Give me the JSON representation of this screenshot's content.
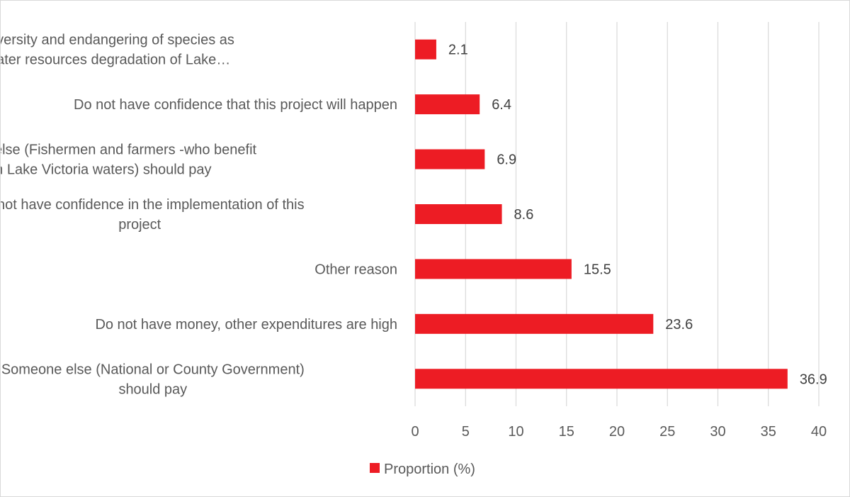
{
  "chart_data": {
    "type": "bar",
    "orientation": "horizontal",
    "title": "",
    "xlabel": "",
    "ylabel": "",
    "xlim": [
      0,
      40
    ],
    "x_ticks": [
      0,
      5,
      10,
      15,
      20,
      25,
      30,
      35,
      40
    ],
    "grid": true,
    "legend_position": "bottom",
    "bar_color": "#ed1c24",
    "categories": [
      [
        "Declining biodiversity and endangering of species as",
        "the result of water resources degradation of Lake…"
      ],
      [
        "Do not have confidence that this project will happen"
      ],
      [
        "Someone else (Fishermen and farmers -who benefit",
        "from Lake Victoria waters) should pay"
      ],
      [
        "Do not have confidence in the implementation of this",
        "project"
      ],
      [
        "Other reason"
      ],
      [
        "Do not have money, other expenditures are high"
      ],
      [
        "Someone else (National or County Government)",
        "should pay"
      ]
    ],
    "series": [
      {
        "name": "Proportion (%)",
        "values": [
          2.1,
          6.4,
          6.9,
          8.6,
          15.5,
          23.6,
          36.9
        ],
        "labels": [
          "2.1",
          "6.4",
          "6.9",
          "8.6",
          "15.5",
          "23.6",
          "36.9"
        ]
      }
    ]
  }
}
